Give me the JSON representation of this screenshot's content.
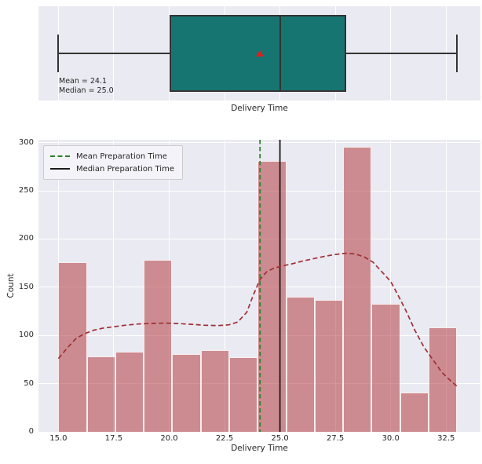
{
  "figure": {
    "background": "#ffffff",
    "axes_background": "#eaeaf2",
    "grid_color": "#ffffff",
    "text_color": "#262626"
  },
  "chart_data": [
    {
      "type": "box",
      "orientation": "horizontal",
      "xlabel": "Delivery Time",
      "stats": {
        "whisker_low": 15.0,
        "q1": 20.0,
        "median": 25.0,
        "q3": 28.0,
        "whisker_high": 33.0,
        "mean": 24.1
      },
      "annotations": [
        "Mean = 24.1",
        "Median = 25.0"
      ],
      "xlim": [
        14.1,
        34.05
      ],
      "grid_x": [
        15,
        17.5,
        20,
        22.5,
        25,
        27.5,
        30,
        32.5
      ],
      "box_fill": "#177571",
      "edge_color": "#333333",
      "mean_marker": {
        "shape": "triangle-up",
        "color": "#e01f1f"
      }
    },
    {
      "type": "histogram",
      "xlabel": "Delivery Time",
      "ylabel": "Count",
      "xlim": [
        14.1,
        34.05
      ],
      "ylim": [
        0,
        303
      ],
      "bar_fill": "rgba(179,60,63,0.55)",
      "bar_edge": "rgba(255,255,255,0.85)",
      "bin_edges": [
        15.0,
        16.29,
        17.57,
        18.86,
        20.14,
        21.43,
        22.71,
        24.0,
        25.29,
        26.57,
        27.86,
        29.14,
        30.43,
        31.71,
        33.0
      ],
      "counts": [
        176,
        78,
        83,
        178,
        81,
        85,
        77,
        281,
        140,
        137,
        296,
        133,
        41,
        108
      ],
      "kde": {
        "color": "#9e3134",
        "style": "dashed",
        "x": [
          15.0,
          15.4,
          15.8,
          16.2,
          16.6,
          17.0,
          17.5,
          18.0,
          18.6,
          19.2,
          19.8,
          20.4,
          21.0,
          21.6,
          22.2,
          22.7,
          23.1,
          23.5,
          23.8,
          24.1,
          24.4,
          24.7,
          25.0,
          25.5,
          26.0,
          26.5,
          27.0,
          27.5,
          28.0,
          28.4,
          28.8,
          29.2,
          29.6,
          30.0,
          30.3,
          30.7,
          31.1,
          31.5,
          31.9,
          32.3,
          32.7,
          33.0
        ],
        "y": [
          76,
          87,
          97,
          102,
          105.5,
          107.5,
          109,
          110.5,
          111.8,
          112.5,
          112.8,
          112.3,
          111.5,
          110.5,
          110.2,
          111,
          114,
          124,
          142,
          158,
          166,
          169.5,
          171.5,
          174,
          177,
          179.5,
          182,
          184,
          185.3,
          184.5,
          181.5,
          176,
          166,
          156,
          143,
          125,
          105,
          88,
          75,
          62,
          53,
          47
        ]
      },
      "vlines": [
        {
          "label": "Mean Preparation Time",
          "x": 24.1,
          "color": "#2b7f2b",
          "style": "dashed"
        },
        {
          "label": "Median Preparation Time",
          "x": 25.0,
          "color": "#1c1c1c",
          "style": "solid"
        }
      ],
      "xticks": {
        "values": [
          15,
          17.5,
          20,
          22.5,
          25,
          27.5,
          30,
          32.5
        ],
        "labels": [
          "15.0",
          "17.5",
          "20.0",
          "22.5",
          "25.0",
          "27.5",
          "30.0",
          "32.5"
        ]
      },
      "yticks": {
        "values": [
          0,
          50,
          100,
          150,
          200,
          250,
          300
        ],
        "labels": [
          "0",
          "50",
          "100",
          "150",
          "200",
          "250",
          "300"
        ]
      },
      "legend": {
        "position": "upper-left",
        "entries": [
          "Mean Preparation Time",
          "Median Preparation Time"
        ]
      }
    }
  ]
}
